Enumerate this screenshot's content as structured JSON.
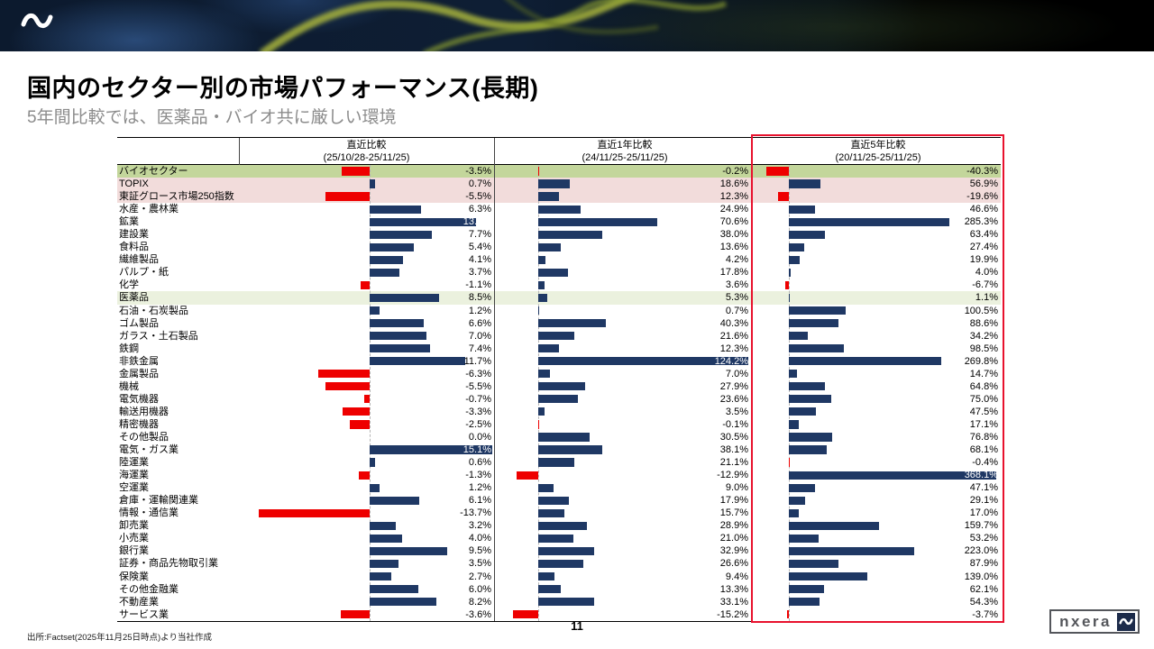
{
  "banner": {
    "logo_icon": "wave-icon"
  },
  "header": {
    "title": "国内のセクター別の市場パフォーマンス(長期)",
    "subtitle": "5年間比較では、医薬品・バイオ共に厳しい環境"
  },
  "chart_data": {
    "type": "bar",
    "orientation": "horizontal",
    "unit": "%",
    "columns": [
      {
        "label": "直近比較",
        "range": "(25/10/28-25/11/25)",
        "xlim_pct": [
          -16.1,
          15.3
        ],
        "highlighted": false
      },
      {
        "label": "直近1年比較",
        "range": "(24/11/25-25/11/25)",
        "xlim_pct": [
          -23.5,
          126.0
        ],
        "highlighted": false
      },
      {
        "label": "直近5年比較",
        "range": "(20/11/25-25/11/25)",
        "xlim_pct": [
          -59.0,
          376.0
        ],
        "highlighted": true
      }
    ],
    "colors": {
      "positive": "#1f3864",
      "negative": "#ee0000",
      "highlight_bio": "#c3d69b",
      "highlight_index": "#f2dcdb",
      "highlight_pharma": "#ebf1de",
      "focus_border": "#e8112d"
    },
    "rows": [
      {
        "label": "バイオセクター",
        "values": [
          -3.5,
          -0.2,
          -40.3
        ],
        "highlight": "bio"
      },
      {
        "label": "TOPIX",
        "values": [
          0.7,
          18.6,
          56.9
        ],
        "highlight": "index"
      },
      {
        "label": "東証グロース市場250指数",
        "values": [
          -5.5,
          12.3,
          -19.6
        ],
        "highlight": "index"
      },
      {
        "label": "水産・農林業",
        "values": [
          6.3,
          24.9,
          46.6
        ]
      },
      {
        "label": "鉱業",
        "values": [
          13.1,
          70.6,
          285.3
        ]
      },
      {
        "label": "建設業",
        "values": [
          7.7,
          38.0,
          63.4
        ]
      },
      {
        "label": "食料品",
        "values": [
          5.4,
          13.6,
          27.4
        ]
      },
      {
        "label": "繊維製品",
        "values": [
          4.1,
          4.2,
          19.9
        ]
      },
      {
        "label": "パルプ・紙",
        "values": [
          3.7,
          17.8,
          4.0
        ]
      },
      {
        "label": "化学",
        "values": [
          -1.1,
          3.6,
          -6.7
        ]
      },
      {
        "label": "医薬品",
        "values": [
          8.5,
          5.3,
          1.1
        ],
        "highlight": "pharma"
      },
      {
        "label": "石油・石炭製品",
        "values": [
          1.2,
          0.7,
          100.5
        ]
      },
      {
        "label": "ゴム製品",
        "values": [
          6.6,
          40.3,
          88.6
        ]
      },
      {
        "label": "ガラス・土石製品",
        "values": [
          7.0,
          21.6,
          34.2
        ]
      },
      {
        "label": "鉄鋼",
        "values": [
          7.4,
          12.3,
          98.5
        ]
      },
      {
        "label": "非鉄金属",
        "values": [
          11.7,
          124.2,
          269.8
        ]
      },
      {
        "label": "金属製品",
        "values": [
          -6.3,
          7.0,
          14.7
        ]
      },
      {
        "label": "機械",
        "values": [
          -5.5,
          27.9,
          64.8
        ]
      },
      {
        "label": "電気機器",
        "values": [
          -0.7,
          23.6,
          75.0
        ]
      },
      {
        "label": "輸送用機器",
        "values": [
          -3.3,
          3.5,
          47.5
        ]
      },
      {
        "label": "精密機器",
        "values": [
          -2.5,
          -0.1,
          17.1
        ]
      },
      {
        "label": "その他製品",
        "values": [
          0.0,
          30.5,
          76.8
        ]
      },
      {
        "label": "電気・ガス業",
        "values": [
          15.1,
          38.1,
          68.1
        ]
      },
      {
        "label": "陸運業",
        "values": [
          0.6,
          21.1,
          -0.4
        ]
      },
      {
        "label": "海運業",
        "values": [
          -1.3,
          -12.9,
          368.1
        ]
      },
      {
        "label": "空運業",
        "values": [
          1.2,
          9.0,
          47.1
        ]
      },
      {
        "label": "倉庫・運輸関連業",
        "values": [
          6.1,
          17.9,
          29.1
        ]
      },
      {
        "label": "情報・通信業",
        "values": [
          -13.7,
          15.7,
          17.0
        ]
      },
      {
        "label": "卸売業",
        "values": [
          3.2,
          28.9,
          159.7
        ]
      },
      {
        "label": "小売業",
        "values": [
          4.0,
          21.0,
          53.2
        ]
      },
      {
        "label": "銀行業",
        "values": [
          9.5,
          32.9,
          223.0
        ]
      },
      {
        "label": "証券・商品先物取引業",
        "values": [
          3.5,
          26.6,
          87.9
        ]
      },
      {
        "label": "保険業",
        "values": [
          2.7,
          9.4,
          139.0
        ]
      },
      {
        "label": "その他金融業",
        "values": [
          6.0,
          13.3,
          62.1
        ]
      },
      {
        "label": "不動産業",
        "values": [
          8.2,
          33.1,
          54.3
        ]
      },
      {
        "label": "サービス業",
        "values": [
          -3.6,
          -15.2,
          -3.7
        ]
      }
    ]
  },
  "footer": {
    "source": "出所:Factset(2025年11月25日時点)より当社作成",
    "page_number": "11",
    "logo_text": "nxera"
  }
}
